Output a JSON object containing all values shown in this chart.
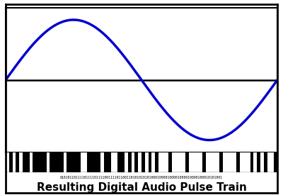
{
  "title": "Resulting Digital Audio Pulse Train",
  "title_fontsize": 11,
  "sine_color": "#0000CC",
  "sine_linewidth": 2.5,
  "bar_color": "#000000",
  "hline_color": "#000000",
  "hline_linewidth": 1.8,
  "bit_string": "01010110111101111011110011110110011010101010100010000100001000010000100010101001",
  "background_color": "#ffffff",
  "border_color": "#000000"
}
